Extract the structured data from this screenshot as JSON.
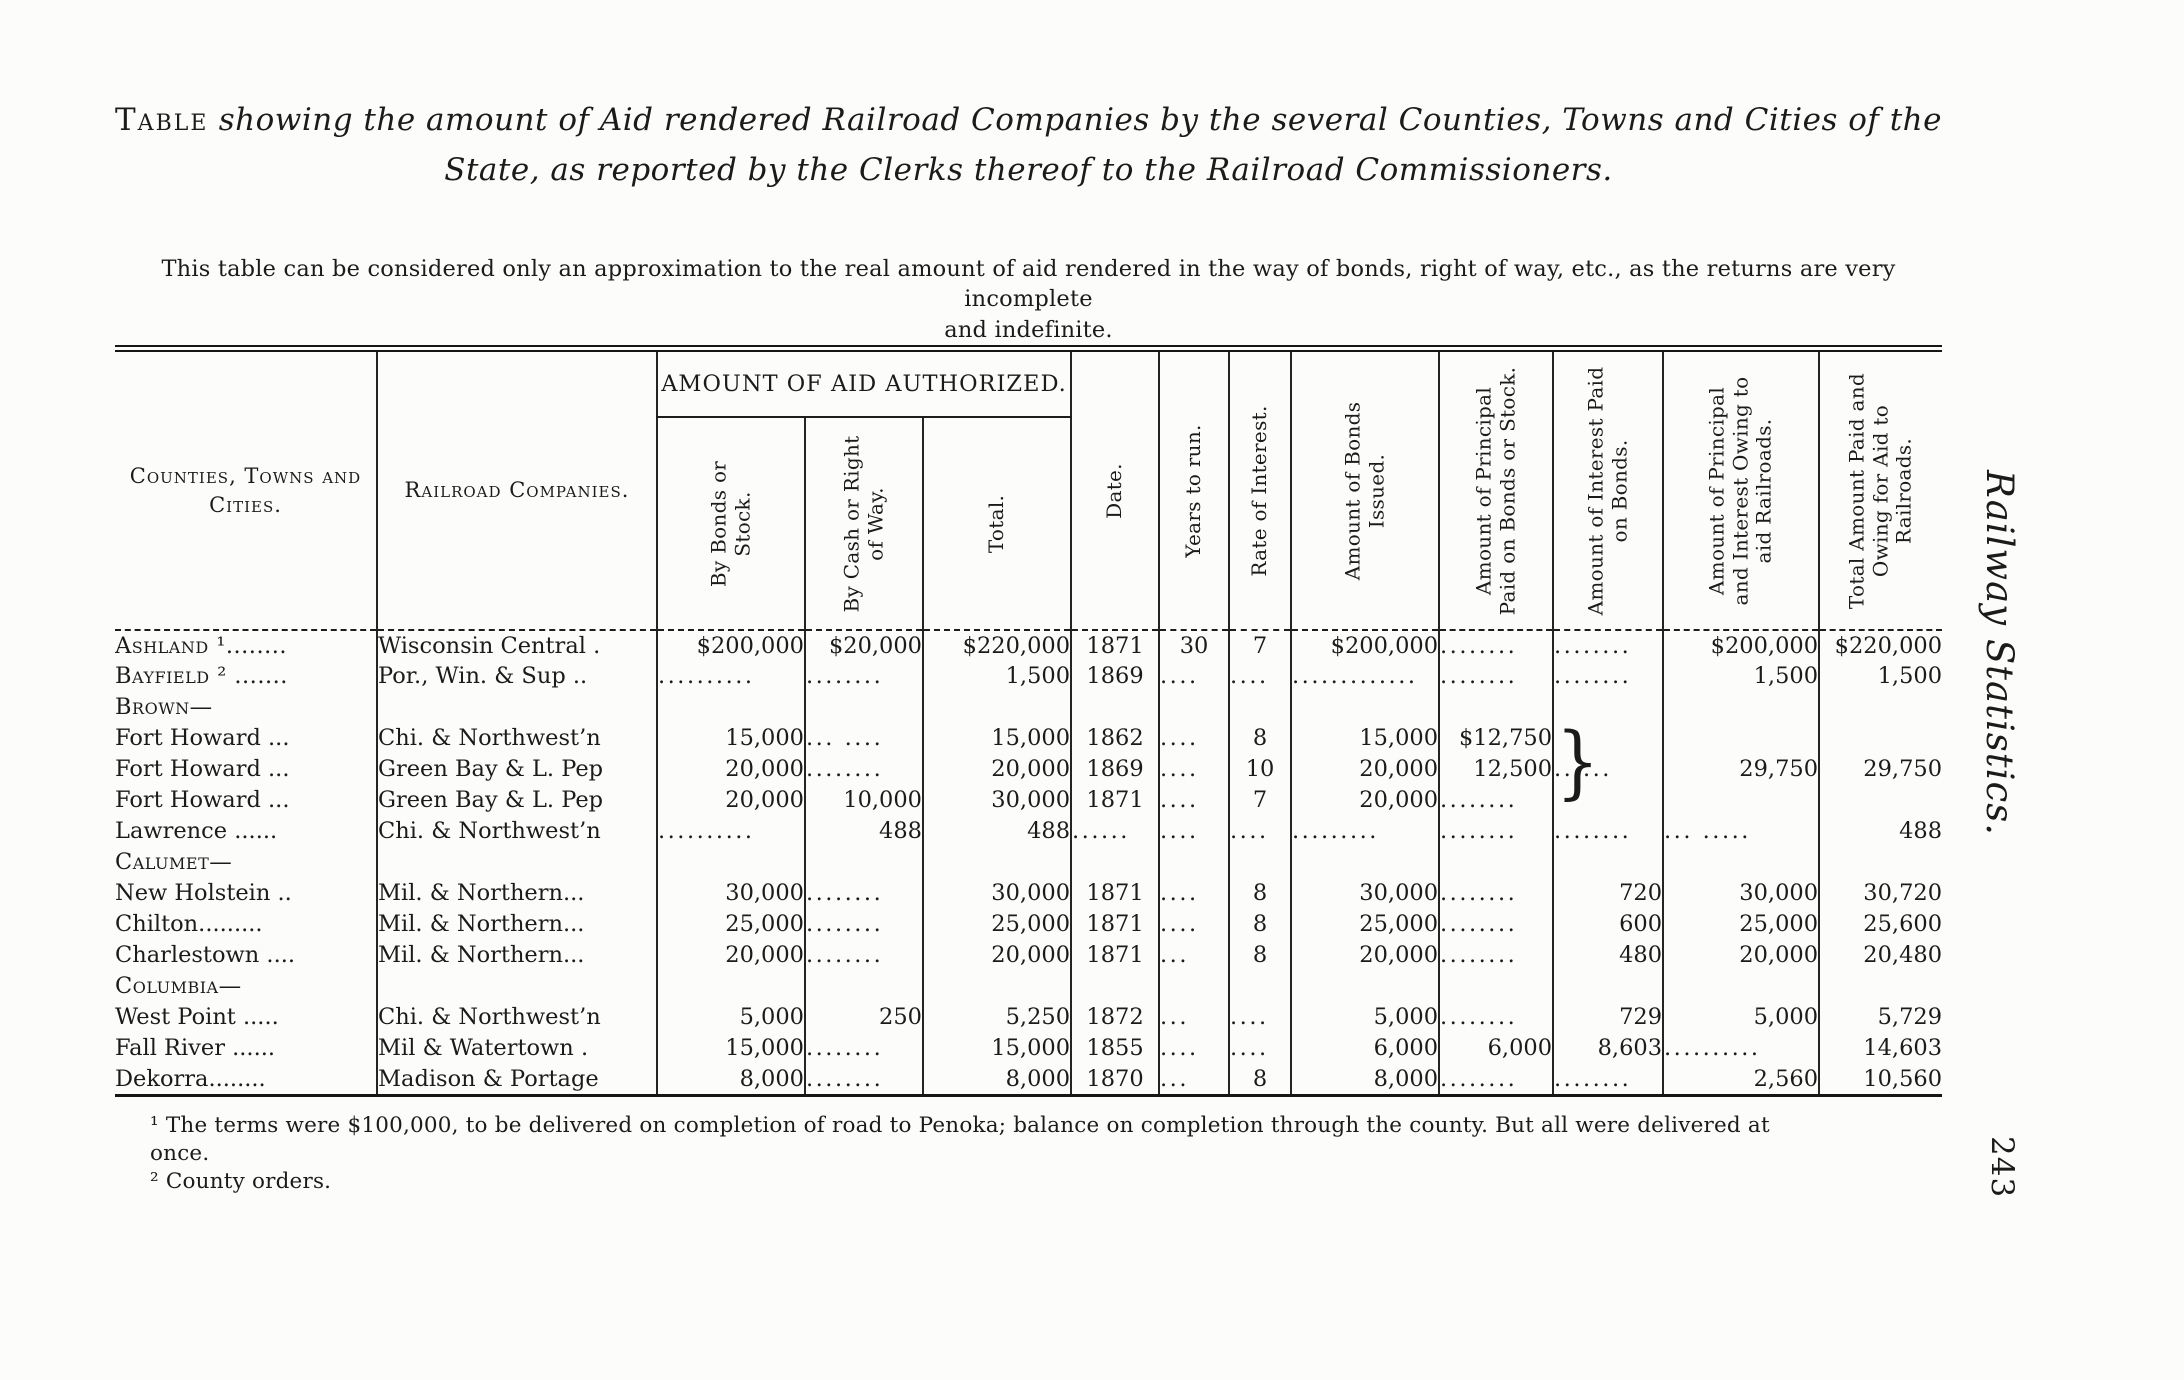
{
  "title": {
    "prefix": "Table",
    "line1": "showing the amount of Aid rendered Railroad Companies by the several Counties, Towns and Cities of the",
    "line2": "State, as reported by the Clerks thereof to the Railroad Commissioners."
  },
  "subtitle": {
    "line1": "This table can be considered only an approximation to the real amount of aid rendered in the way of bonds, right of way, etc., as the returns are very incomplete",
    "line2": "and indefinite."
  },
  "margin": {
    "label": "Railway Statistics.",
    "page_number": "243"
  },
  "footnotes": {
    "note1": "¹ The terms were $100,000, to be delivered on completion of road to Penoka; balance on completion through the county.  But all were delivered at once.",
    "note2": "² County orders."
  },
  "table": {
    "group_header": "AMOUNT OF AID AUTHORIZED.",
    "brace": "}",
    "col_headers": {
      "counties": "Counties, Towns and Cities.",
      "companies": "Railroad Companies.",
      "by_bonds": "By Bonds or Stock.",
      "by_cash": "By Cash or Right of Way.",
      "total": "Total.",
      "date": "Date.",
      "years": "Years to run.",
      "rate": "Rate of Interest.",
      "bonds_issued": "Amount of Bonds Issued.",
      "principal_paid": "Amount of Principal Paid on Bonds or Stock.",
      "interest_paid": "Amount of Interest Paid on Bonds.",
      "owing": "Amount of Principal and Interest Owing to aid Railroads.",
      "total_paid": "Total Amount Paid and Owing for Aid to Railroads."
    },
    "rows": [
      {
        "style": "county",
        "cells": [
          "Ashland ¹........",
          "Wisconsin Central .",
          "$200,000",
          "$20,000",
          "$220,000",
          "1871",
          "30",
          "7",
          "$200,000",
          "........",
          "........",
          "$200,000",
          "$220,000"
        ]
      },
      {
        "style": "county",
        "cells": [
          "Bayfield ² .......",
          "Por., Win. & Sup ..",
          "..........",
          "........",
          "1,500",
          "1869",
          "....",
          "....",
          ".............",
          "........",
          "........",
          "1,500",
          "1,500"
        ]
      },
      {
        "style": "group",
        "cells": [
          "Brown—",
          "",
          "",
          "",
          "",
          "",
          "",
          "",
          "",
          "",
          "",
          "",
          ""
        ]
      },
      {
        "style": "town",
        "cells": [
          "Fort Howard ...",
          "Chi. & Northwest’n",
          "15,000",
          "... ....",
          "15,000",
          "1862",
          "....",
          "8",
          "15,000",
          "$12,750",
          "",
          "",
          ""
        ]
      },
      {
        "style": "town",
        "brace": true,
        "cells": [
          "Fort Howard ...",
          "Green Bay & L. Pep",
          "20,000",
          "........",
          "20,000",
          "1869",
          "....",
          "10",
          "20,000",
          "12,500",
          "......",
          "29,750",
          "29,750"
        ]
      },
      {
        "style": "town",
        "cells": [
          "Fort Howard ...",
          "Green Bay & L. Pep",
          "20,000",
          "10,000",
          "30,000",
          "1871",
          "....",
          "7",
          "20,000",
          "........",
          "",
          "",
          ""
        ]
      },
      {
        "style": "town",
        "cells": [
          "Lawrence ......",
          "Chi. & Northwest’n",
          "..........",
          "488",
          "488",
          "......",
          "....",
          "....",
          ".........",
          "........",
          "........",
          "... .....",
          "488"
        ]
      },
      {
        "style": "group",
        "cells": [
          "Calumet—",
          "",
          "",
          "",
          "",
          "",
          "",
          "",
          "",
          "",
          "",
          "",
          ""
        ]
      },
      {
        "style": "town",
        "cells": [
          "New Holstein ..",
          "Mil. & Northern...",
          "30,000",
          "........",
          "30,000",
          "1871",
          "....",
          "8",
          "30,000",
          "........",
          "720",
          "30,000",
          "30,720"
        ]
      },
      {
        "style": "town",
        "cells": [
          "Chilton.........",
          "Mil. & Northern...",
          "25,000",
          "........",
          "25,000",
          "1871",
          "....",
          "8",
          "25,000",
          "........",
          "600",
          "25,000",
          "25,600"
        ]
      },
      {
        "style": "town",
        "cells": [
          "Charlestown ....",
          "Mil. & Northern...",
          "20,000",
          "........",
          "20,000",
          "1871",
          "...",
          "8",
          "20,000",
          "........",
          "480",
          "20,000",
          "20,480"
        ]
      },
      {
        "style": "group",
        "cells": [
          "Columbia—",
          "",
          "",
          "",
          "",
          "",
          "",
          "",
          "",
          "",
          "",
          "",
          ""
        ]
      },
      {
        "style": "town",
        "cells": [
          "West Point .....",
          "Chi. & Northwest’n",
          "5,000",
          "250",
          "5,250",
          "1872",
          "...",
          "....",
          "5,000",
          "........",
          "729",
          "5,000",
          "5,729"
        ]
      },
      {
        "style": "town",
        "cells": [
          "Fall River ......",
          "Mil & Watertown .",
          "15,000",
          "........",
          "15,000",
          "1855",
          "....",
          "....",
          "6,000",
          "6,000",
          "8,603",
          "..........",
          "14,603"
        ]
      },
      {
        "style": "town",
        "cells": [
          "Dekorra........",
          "Madison & Portage",
          "8,000",
          "........",
          "8,000",
          "1870",
          "...",
          "8",
          "8,000",
          "........",
          "........",
          "2,560",
          "10,560"
        ]
      }
    ]
  }
}
